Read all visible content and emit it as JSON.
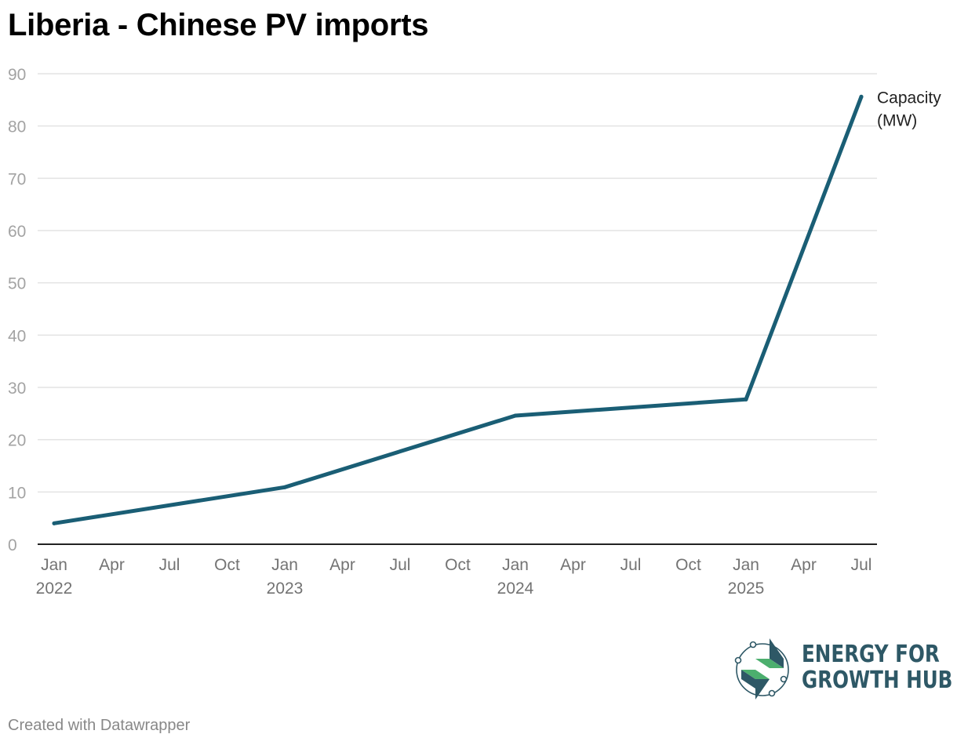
{
  "title": "Liberia - Chinese PV imports",
  "footer": "Created with Datawrapper",
  "logo": {
    "line1": "ENERGY FOR",
    "line2": "GROWTH HUB",
    "icon": "energy-for-growth-hub-logo-icon"
  },
  "colors": {
    "series": "#1a5e75",
    "logo_text": "#2e5866",
    "logo_green": "#4caf6e"
  },
  "chart_data": {
    "type": "line",
    "title": "Liberia - Chinese PV imports",
    "xlabel": "",
    "ylabel": "",
    "ylim": [
      0,
      90
    ],
    "yticks": [
      0,
      10,
      20,
      30,
      40,
      50,
      60,
      70,
      80,
      90
    ],
    "grid": true,
    "x_ticks": [
      {
        "month": "Jan",
        "year": "2022"
      },
      {
        "month": "Apr",
        "year": ""
      },
      {
        "month": "Jul",
        "year": ""
      },
      {
        "month": "Oct",
        "year": ""
      },
      {
        "month": "Jan",
        "year": "2023"
      },
      {
        "month": "Apr",
        "year": ""
      },
      {
        "month": "Jul",
        "year": ""
      },
      {
        "month": "Oct",
        "year": ""
      },
      {
        "month": "Jan",
        "year": "2024"
      },
      {
        "month": "Apr",
        "year": ""
      },
      {
        "month": "Jul",
        "year": ""
      },
      {
        "month": "Oct",
        "year": ""
      },
      {
        "month": "Jan",
        "year": "2025"
      },
      {
        "month": "Apr",
        "year": ""
      },
      {
        "month": "Jul",
        "year": ""
      }
    ],
    "series": [
      {
        "name": "Capacity (MW)",
        "label_lines": [
          "Capacity",
          "(MW)"
        ],
        "points": [
          {
            "x": "2022-01",
            "y": 4.0
          },
          {
            "x": "2023-01",
            "y": 10.9
          },
          {
            "x": "2024-01",
            "y": 24.6
          },
          {
            "x": "2025-01",
            "y": 27.7
          },
          {
            "x": "2025-07",
            "y": 85.6
          }
        ]
      }
    ]
  }
}
